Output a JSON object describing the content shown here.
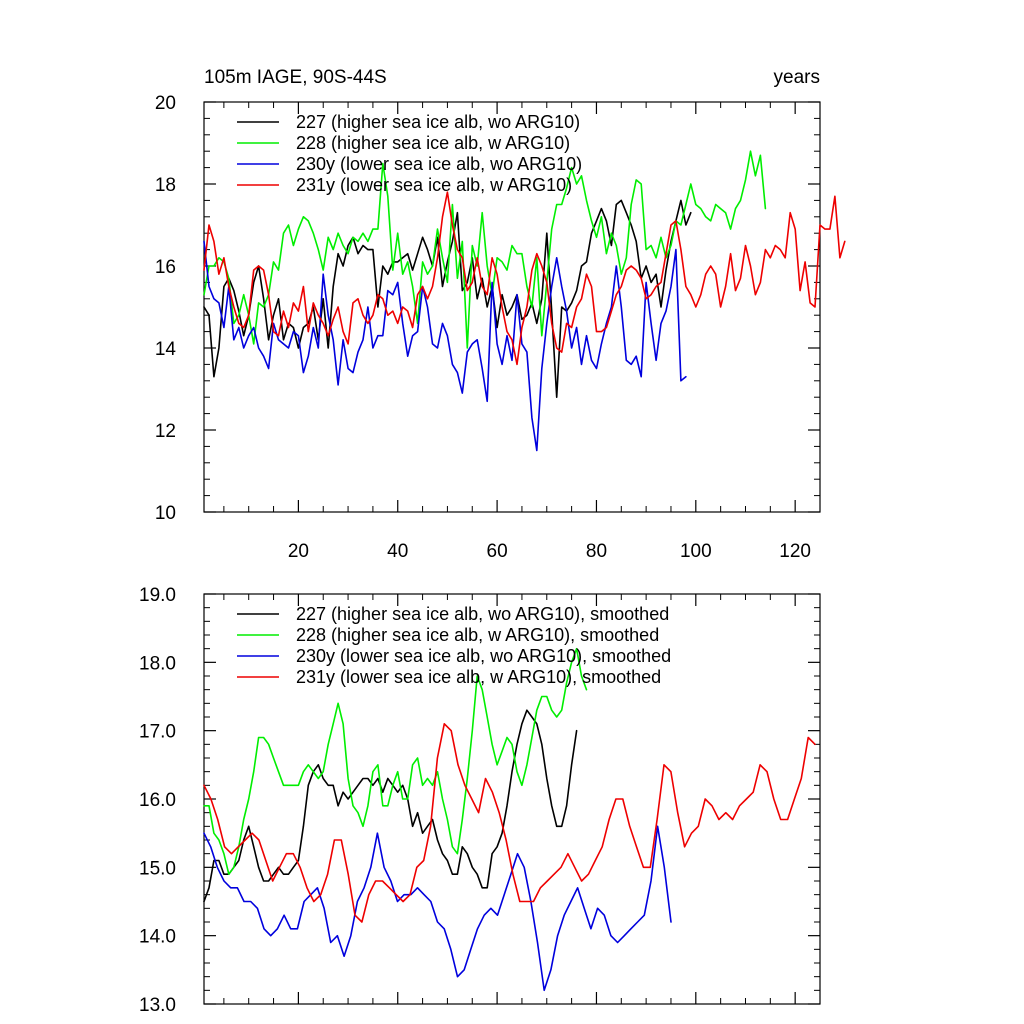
{
  "chart_data": [
    {
      "type": "line",
      "title": "105m IAGE, 90S-44S",
      "xlabel": "years",
      "ylabel": "",
      "xlim": [
        1,
        125
      ],
      "ylim": [
        10,
        20
      ],
      "x_ticks": [
        20,
        40,
        60,
        80,
        100,
        120
      ],
      "x_tick_labels": [
        "20",
        "40",
        "60",
        "80",
        "100",
        "120"
      ],
      "y_ticks": [
        10,
        12,
        14,
        16,
        18,
        20
      ],
      "y_tick_labels": [
        "10",
        "12",
        "14",
        "16",
        "18",
        "20"
      ],
      "legend_position": "top-left",
      "series": [
        {
          "name": "227 (higher sea ice alb, wo ARG10)",
          "color": "#000000",
          "values": [
            15.0,
            14.8,
            13.3,
            14.0,
            15.5,
            15.7,
            15.4,
            14.9,
            14.3,
            14.8,
            15.6,
            16.0,
            15.2,
            14.2,
            14.8,
            15.2,
            14.2,
            14.6,
            14.5,
            14.0,
            14.5,
            14.6,
            15.0,
            14.2,
            15.2,
            14.0,
            15.5,
            16.3,
            16.0,
            16.5,
            16.7,
            16.3,
            16.5,
            16.4,
            16.4,
            15.0,
            16.0,
            15.8,
            16.1,
            16.1,
            16.2,
            16.3,
            15.9,
            16.3,
            16.7,
            16.4,
            16.0,
            16.7,
            15.5,
            16.1,
            16.6,
            17.3,
            15.4,
            15.6,
            16.2,
            15.2,
            15.7,
            15.0,
            15.5,
            14.5,
            15.3,
            14.8,
            15.0,
            15.3,
            14.7,
            14.8,
            15.1,
            14.6,
            15.2,
            16.8,
            14.9,
            12.8,
            15.0,
            14.9,
            15.1,
            15.4,
            16.0,
            16.1,
            16.8,
            17.1,
            17.4,
            17.1,
            16.5,
            17.5,
            17.6,
            17.3,
            17.0,
            16.6,
            15.7,
            16.0,
            15.6,
            15.8,
            15.0,
            15.9,
            16.6,
            17.1,
            17.6,
            17.0,
            17.3
          ],
          "smoothed": [
            14.5,
            14.7,
            15.1,
            15.1,
            14.9,
            14.9,
            15.0,
            15.1,
            15.4,
            15.6,
            15.3,
            15.0,
            14.8,
            14.8,
            14.9,
            15.0,
            14.9,
            14.9,
            15.0,
            15.1,
            15.6,
            16.2,
            16.4,
            16.5,
            16.3,
            16.2,
            16.2,
            15.9,
            16.1,
            16.0,
            16.1,
            16.2,
            16.3,
            16.3,
            16.2,
            16.3,
            16.1,
            16.3,
            16.2,
            16.1,
            16.2,
            16.0,
            15.6,
            15.8,
            15.5,
            15.6,
            15.7,
            15.4,
            15.2,
            15.1,
            14.9,
            14.9,
            15.3,
            15.2,
            15.0,
            14.9,
            14.7,
            14.7,
            15.2,
            15.3,
            15.5,
            15.9,
            16.4,
            16.8,
            17.1,
            17.3,
            17.2,
            17.1,
            16.8,
            16.3,
            15.9,
            15.6,
            15.6,
            15.9,
            16.5,
            17.0
          ]
        },
        {
          "name": "228 (higher sea ice alb, w ARG10)",
          "color": "#00ee00",
          "values": [
            15.3,
            16.0,
            16.0,
            16.2,
            16.1,
            15.7,
            14.6,
            14.8,
            15.3,
            14.8,
            14.1,
            15.1,
            15.0,
            15.3,
            16.1,
            15.9,
            16.8,
            17.0,
            16.5,
            16.9,
            17.2,
            17.1,
            16.8,
            16.4,
            15.9,
            16.7,
            16.4,
            16.8,
            16.5,
            16.3,
            16.7,
            16.6,
            16.8,
            16.6,
            16.9,
            16.9,
            18.5,
            17.7,
            15.9,
            16.8,
            15.8,
            16.1,
            15.5,
            14.6,
            16.1,
            15.8,
            16.0,
            16.9,
            16.2,
            15.6,
            17.5,
            15.7,
            16.6,
            14.0,
            16.5,
            16.0,
            17.3,
            16.0,
            15.3,
            16.2,
            16.1,
            15.9,
            16.5,
            16.3,
            16.3,
            15.5,
            15.0,
            16.2,
            14.3,
            15.6,
            16.9,
            17.5,
            17.5,
            17.9,
            18.4,
            18.0,
            18.2,
            17.6,
            17.1,
            16.7,
            17.2,
            16.3,
            16.8,
            16.5,
            15.8,
            16.2,
            17.5,
            18.1,
            18.0,
            16.4,
            16.5,
            16.2,
            16.7,
            16.2,
            16.5,
            17.1,
            17.0,
            17.5,
            18.0,
            17.5,
            17.4,
            17.2,
            17.1,
            17.5,
            17.4,
            17.3,
            16.9,
            17.4,
            17.6,
            18.1,
            18.8,
            18.2,
            18.7,
            17.4
          ],
          "smoothed": [
            15.9,
            15.9,
            15.5,
            15.4,
            15.2,
            14.9,
            15.0,
            15.3,
            15.7,
            16.0,
            16.4,
            16.9,
            16.9,
            16.8,
            16.6,
            16.4,
            16.2,
            16.2,
            16.2,
            16.2,
            16.4,
            16.5,
            16.4,
            16.3,
            16.4,
            16.8,
            17.1,
            17.4,
            17.1,
            16.3,
            15.9,
            15.8,
            15.6,
            15.9,
            16.4,
            16.5,
            15.9,
            15.9,
            16.2,
            16.4,
            16.0,
            16.0,
            16.5,
            16.6,
            16.2,
            16.3,
            16.2,
            16.4,
            16.0,
            15.7,
            15.3,
            15.2,
            15.7,
            16.3,
            17.0,
            17.8,
            17.6,
            17.2,
            16.8,
            16.5,
            16.7,
            16.9,
            16.8,
            16.4,
            16.2,
            16.5,
            16.9,
            17.3,
            17.5,
            17.5,
            17.3,
            17.2,
            17.3,
            17.7,
            18.0,
            18.2,
            17.8,
            17.6
          ]
        },
        {
          "name": "230y (lower sea ice alb, wo ARG10)",
          "color": "#0000dd",
          "values": [
            16.6,
            15.5,
            15.2,
            15.1,
            14.5,
            15.5,
            14.2,
            14.5,
            14.0,
            14.3,
            14.5,
            14.0,
            13.8,
            13.5,
            14.6,
            14.2,
            14.1,
            14.0,
            14.4,
            14.3,
            13.4,
            13.8,
            14.5,
            14.0,
            15.8,
            14.8,
            14.2,
            13.1,
            14.2,
            13.5,
            13.4,
            13.9,
            14.2,
            15.0,
            14.0,
            14.3,
            14.3,
            15.4,
            15.3,
            15.6,
            14.6,
            13.8,
            14.3,
            14.4,
            15.5,
            15.0,
            14.1,
            14.0,
            14.6,
            14.3,
            13.6,
            13.4,
            12.9,
            13.9,
            14.1,
            14.2,
            13.5,
            12.7,
            15.6,
            14.1,
            13.6,
            14.3,
            13.7,
            15.3,
            14.1,
            13.9,
            12.3,
            11.5,
            13.5,
            14.6,
            15.5,
            16.2,
            15.5,
            14.9,
            14.0,
            14.5,
            13.6,
            14.3,
            13.7,
            13.5,
            14.1,
            14.6,
            15.0,
            16.0,
            15.0,
            13.7,
            13.6,
            13.8,
            13.3,
            15.6,
            14.6,
            13.7,
            14.6,
            14.9,
            15.5,
            16.4,
            13.2,
            13.3
          ],
          "smoothed": [
            15.5,
            15.3,
            15.0,
            14.8,
            14.7,
            14.7,
            14.5,
            14.5,
            14.4,
            14.1,
            14.0,
            14.1,
            14.3,
            14.1,
            14.1,
            14.5,
            14.6,
            14.7,
            14.4,
            13.9,
            14.0,
            13.7,
            14.0,
            14.5,
            14.7,
            15.0,
            15.5,
            15.0,
            14.8,
            14.5,
            14.6,
            14.6,
            14.7,
            14.6,
            14.5,
            14.2,
            14.1,
            13.8,
            13.4,
            13.5,
            13.8,
            14.1,
            14.3,
            14.4,
            14.3,
            14.6,
            14.9,
            15.2,
            15.0,
            14.5,
            13.9,
            13.2,
            13.5,
            14.0,
            14.3,
            14.5,
            14.7,
            14.4,
            14.1,
            14.4,
            14.3,
            14.0,
            13.9,
            14.0,
            14.1,
            14.2,
            14.3,
            14.8,
            15.6,
            15.0,
            14.2
          ],
          "smoothed_stop": 95
        },
        {
          "name": "231y (lower sea ice alb, w ARG10)",
          "color": "#ee0000",
          "values": [
            15.9,
            17.0,
            16.6,
            15.8,
            16.2,
            15.5,
            15.0,
            14.6,
            14.5,
            14.8,
            15.9,
            16.0,
            15.9,
            15.3,
            14.4,
            14.3,
            14.9,
            14.5,
            15.1,
            14.9,
            15.5,
            14.4,
            15.1,
            14.8,
            14.6,
            14.3,
            14.7,
            15.0,
            14.4,
            14.1,
            15.1,
            15.2,
            14.8,
            14.6,
            14.8,
            15.3,
            15.2,
            14.8,
            14.9,
            14.6,
            15.0,
            14.9,
            14.5,
            15.3,
            15.5,
            15.2,
            15.5,
            16.2,
            17.2,
            17.8,
            17.0,
            16.4,
            16.2,
            15.4,
            15.6,
            16.2,
            15.5,
            15.3,
            16.2,
            15.8,
            15.0,
            14.4,
            14.2,
            13.6,
            14.5,
            15.0,
            15.9,
            16.3,
            16.0,
            15.6,
            14.6,
            14.0,
            13.9,
            14.6,
            14.5,
            15.0,
            15.2,
            15.8,
            15.5,
            14.4,
            14.4,
            14.5,
            14.9,
            15.3,
            15.5,
            15.9,
            16.0,
            15.9,
            15.7,
            15.2,
            15.3,
            15.5,
            15.6,
            16.3,
            17.0,
            17.1,
            16.4,
            15.5,
            15.3,
            15.0,
            15.3,
            15.8,
            16.0,
            15.8,
            15.0,
            15.5,
            16.3,
            15.4,
            15.7,
            16.5,
            16.0,
            15.3,
            15.6,
            16.4,
            16.2,
            16.5,
            16.4,
            16.2,
            17.3,
            16.9,
            15.4,
            16.1,
            15.1,
            15.0,
            17.0,
            16.9,
            16.9,
            17.7,
            16.2,
            16.6
          ],
          "smoothed": [
            16.2,
            16.0,
            15.7,
            15.3,
            15.2,
            15.3,
            15.4,
            15.5,
            15.4,
            15.1,
            14.8,
            15.0,
            15.2,
            15.2,
            15.0,
            14.7,
            14.5,
            14.6,
            14.9,
            15.4,
            15.4,
            14.9,
            14.3,
            14.2,
            14.6,
            14.8,
            14.8,
            14.7,
            14.6,
            14.5,
            14.6,
            15.0,
            15.1,
            15.6,
            16.6,
            17.1,
            17.0,
            16.5,
            16.2,
            16.0,
            15.8,
            16.3,
            16.1,
            15.8,
            15.4,
            14.9,
            14.5,
            14.5,
            14.5,
            14.7,
            14.8,
            14.9,
            15.0,
            15.2,
            15.0,
            14.8,
            14.9,
            15.1,
            15.3,
            15.7,
            16.0,
            16.0,
            15.6,
            15.3,
            15.0,
            15.0,
            15.7,
            16.5,
            16.4,
            15.8,
            15.3,
            15.5,
            15.6,
            16.0,
            15.9,
            15.7,
            15.8,
            15.7,
            15.9,
            16.0,
            16.1,
            16.5,
            16.4,
            16.0,
            15.7,
            15.7,
            16.0,
            16.3,
            16.9,
            16.8
          ],
          "smoothed_stop": 124
        }
      ]
    },
    {
      "type": "line",
      "title": "",
      "xlabel": "",
      "ylabel": "",
      "xlim": [
        1,
        125
      ],
      "ylim": [
        13.0,
        19.0
      ],
      "y_ticks": [
        13.0,
        14.0,
        15.0,
        16.0,
        17.0,
        18.0,
        19.0
      ],
      "y_tick_labels": [
        "13.0",
        "14.0",
        "15.0",
        "16.0",
        "17.0",
        "18.0",
        "19.0"
      ],
      "legend_position": "top-left",
      "series_names": [
        "227 (higher sea ice alb, wo ARG10), smoothed",
        "228 (higher sea ice alb, w ARG10), smoothed",
        "230y (lower sea ice alb, wo ARG10), smoothed",
        "231y (lower sea ice alb, w ARG10), smoothed"
      ]
    }
  ]
}
